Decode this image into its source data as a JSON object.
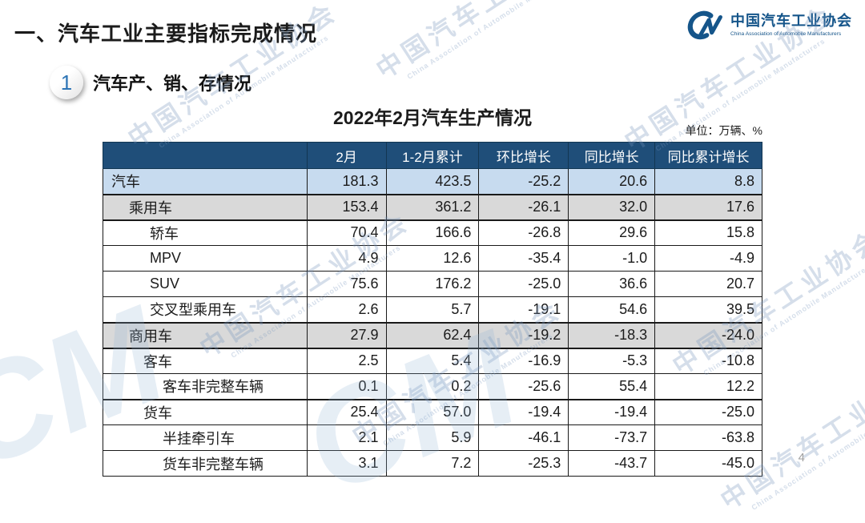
{
  "page": {
    "title": "一、汽车工业主要指标完成情况",
    "page_number": "4"
  },
  "logo": {
    "monogram": "CM",
    "name_cn": "中国汽车工业协会",
    "name_en": "China Association of Automobile Manufacturers"
  },
  "section": {
    "index": "1",
    "label": "汽车产、销、存情况"
  },
  "table": {
    "title": "2022年2月汽车生产情况",
    "unit_note": "单位：万辆、%",
    "columns": [
      "",
      "2月",
      "1-2月累计",
      "环比增长",
      "同比增长",
      "同比累计增长"
    ],
    "rows": [
      {
        "category": "汽车",
        "indent": 0,
        "style": "blue",
        "thick_top": false,
        "values": [
          "181.3",
          "423.5",
          "-25.2",
          "20.6",
          "8.8"
        ]
      },
      {
        "category": "乘用车",
        "indent": 1,
        "style": "gray",
        "thick_top": true,
        "values": [
          "153.4",
          "361.2",
          "-26.1",
          "32.0",
          "17.6"
        ]
      },
      {
        "category": "轿车",
        "indent": 3,
        "style": "white",
        "thick_top": true,
        "values": [
          "70.4",
          "166.6",
          "-26.8",
          "29.6",
          "15.8"
        ]
      },
      {
        "category": "MPV",
        "indent": 3,
        "style": "white",
        "thick_top": false,
        "values": [
          "4.9",
          "12.6",
          "-35.4",
          "-1.0",
          "-4.9"
        ]
      },
      {
        "category": "SUV",
        "indent": 3,
        "style": "white",
        "thick_top": false,
        "values": [
          "75.6",
          "176.2",
          "-25.0",
          "36.6",
          "20.7"
        ]
      },
      {
        "category": "交叉型乘用车",
        "indent": 3,
        "style": "white",
        "thick_top": false,
        "values": [
          "2.6",
          "5.7",
          "-19.1",
          "54.6",
          "39.5"
        ]
      },
      {
        "category": "商用车",
        "indent": 1,
        "style": "gray",
        "thick_top": true,
        "values": [
          "27.9",
          "62.4",
          "-19.2",
          "-18.3",
          "-24.0"
        ]
      },
      {
        "category": "客车",
        "indent": 2,
        "style": "white",
        "thick_top": true,
        "values": [
          "2.5",
          "5.4",
          "-16.9",
          "-5.3",
          "-10.8"
        ]
      },
      {
        "category": "客车非完整车辆",
        "indent": 4,
        "style": "white",
        "thick_top": false,
        "values": [
          "0.1",
          "0.2",
          "-25.6",
          "55.4",
          "12.2"
        ]
      },
      {
        "category": "货车",
        "indent": 2,
        "style": "white",
        "thick_top": true,
        "values": [
          "25.4",
          "57.0",
          "-19.4",
          "-19.4",
          "-25.0"
        ]
      },
      {
        "category": "半挂牵引车",
        "indent": 4,
        "style": "white",
        "thick_top": false,
        "values": [
          "2.1",
          "5.9",
          "-46.1",
          "-73.7",
          "-63.8"
        ]
      },
      {
        "category": "货车非完整车辆",
        "indent": 4,
        "style": "white",
        "thick_top": false,
        "values": [
          "3.1",
          "7.2",
          "-25.3",
          "-43.7",
          "-45.0"
        ]
      }
    ]
  },
  "watermark": {
    "text_cn": "中国汽车工业协会",
    "text_en": "China Association of Automobile Manufacturers",
    "monogram": "CM"
  },
  "colors": {
    "header_bg": "#1F4E79",
    "row_blue": "#C7DBEF",
    "row_gray": "#D9D9D9",
    "accent_blue": "#2E75B6",
    "logo_blue": "#15558A",
    "watermark_blue": "#7695BD"
  }
}
